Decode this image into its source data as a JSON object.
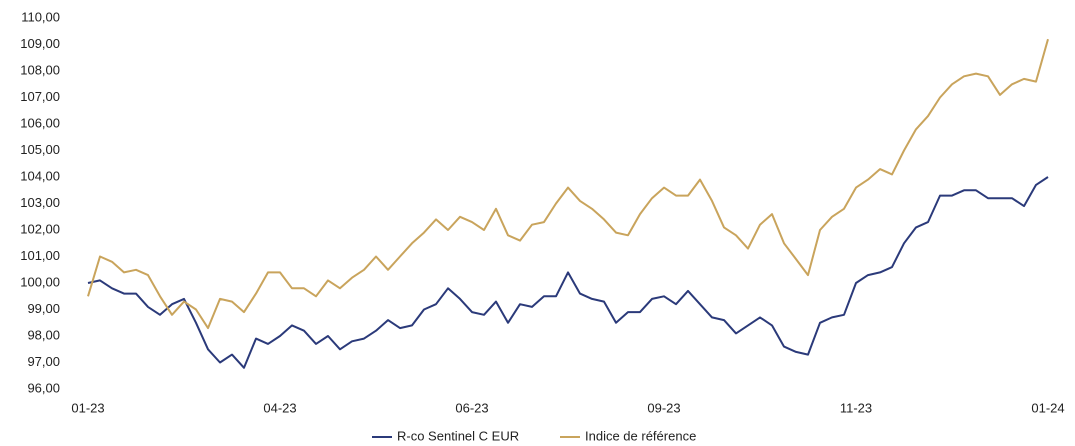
{
  "chart_data": {
    "type": "line",
    "categories": [
      "01-23",
      null,
      null,
      null,
      null,
      null,
      null,
      null,
      null,
      null,
      null,
      null,
      null,
      null,
      null,
      null,
      "04-23",
      null,
      null,
      null,
      null,
      null,
      null,
      null,
      null,
      null,
      null,
      null,
      null,
      null,
      null,
      null,
      "06-23",
      null,
      null,
      null,
      null,
      null,
      null,
      null,
      null,
      null,
      null,
      null,
      null,
      null,
      null,
      null,
      "09-23",
      null,
      null,
      null,
      null,
      null,
      null,
      null,
      null,
      null,
      null,
      null,
      null,
      null,
      null,
      null,
      "11-23",
      null,
      null,
      null,
      null,
      null,
      null,
      null,
      null,
      null,
      null,
      null,
      null,
      null,
      null,
      null,
      "01-24"
    ],
    "series": [
      {
        "name": "R-co Sentinel C EUR",
        "color": "#2b3a7a",
        "values": [
          100.0,
          100.1,
          99.8,
          99.6,
          99.6,
          99.1,
          98.8,
          99.2,
          99.4,
          98.5,
          97.5,
          97.0,
          97.3,
          96.8,
          97.9,
          97.7,
          98.0,
          98.4,
          98.2,
          97.7,
          98.0,
          97.5,
          97.8,
          97.9,
          98.2,
          98.6,
          98.3,
          98.4,
          99.0,
          99.2,
          99.8,
          99.4,
          98.9,
          98.8,
          99.3,
          98.5,
          99.2,
          99.1,
          99.5,
          99.5,
          100.4,
          99.6,
          99.4,
          99.3,
          98.5,
          98.9,
          98.9,
          99.4,
          99.5,
          99.2,
          99.7,
          99.2,
          98.7,
          98.6,
          98.1,
          98.4,
          98.7,
          98.4,
          97.6,
          97.4,
          97.3,
          98.5,
          98.7,
          98.8,
          100.0,
          100.3,
          100.4,
          100.6,
          101.5,
          102.1,
          102.3,
          103.3,
          103.3,
          103.5,
          103.5,
          103.2,
          103.2,
          103.2,
          102.9,
          103.7,
          104.0
        ]
      },
      {
        "name": "Indice de référence",
        "color": "#c9a45c",
        "values": [
          99.5,
          101.0,
          100.8,
          100.4,
          100.5,
          100.3,
          99.5,
          98.8,
          99.3,
          99.0,
          98.3,
          99.4,
          99.3,
          98.9,
          99.6,
          100.4,
          100.4,
          99.8,
          99.8,
          99.5,
          100.1,
          99.8,
          100.2,
          100.5,
          101.0,
          100.5,
          101.0,
          101.5,
          101.9,
          102.4,
          102.0,
          102.5,
          102.3,
          102.0,
          102.8,
          101.8,
          101.6,
          102.2,
          102.3,
          103.0,
          103.6,
          103.1,
          102.8,
          102.4,
          101.9,
          101.8,
          102.6,
          103.2,
          103.6,
          103.3,
          103.3,
          103.9,
          103.1,
          102.1,
          101.8,
          101.3,
          102.2,
          102.6,
          101.5,
          100.9,
          100.3,
          102.0,
          102.5,
          102.8,
          103.6,
          103.9,
          104.3,
          104.1,
          105.0,
          105.8,
          106.3,
          107.0,
          107.5,
          107.8,
          107.9,
          107.8,
          107.1,
          107.5,
          107.7,
          107.6,
          109.2
        ]
      }
    ],
    "ylim": [
      96,
      110
    ],
    "yticks": [
      {
        "value": 96,
        "label": "96,00"
      },
      {
        "value": 97,
        "label": "97,00"
      },
      {
        "value": 98,
        "label": "98,00"
      },
      {
        "value": 99,
        "label": "99,00"
      },
      {
        "value": 100,
        "label": "100,00"
      },
      {
        "value": 101,
        "label": "101,00"
      },
      {
        "value": 102,
        "label": "102,00"
      },
      {
        "value": 103,
        "label": "103,00"
      },
      {
        "value": 104,
        "label": "104,00"
      },
      {
        "value": 105,
        "label": "105,00"
      },
      {
        "value": 106,
        "label": "106,00"
      },
      {
        "value": 107,
        "label": "107,00"
      },
      {
        "value": 108,
        "label": "108,00"
      },
      {
        "value": 109,
        "label": "109,00"
      },
      {
        "value": 110,
        "label": "110,00"
      }
    ],
    "grid": false,
    "legend": "bottom"
  }
}
